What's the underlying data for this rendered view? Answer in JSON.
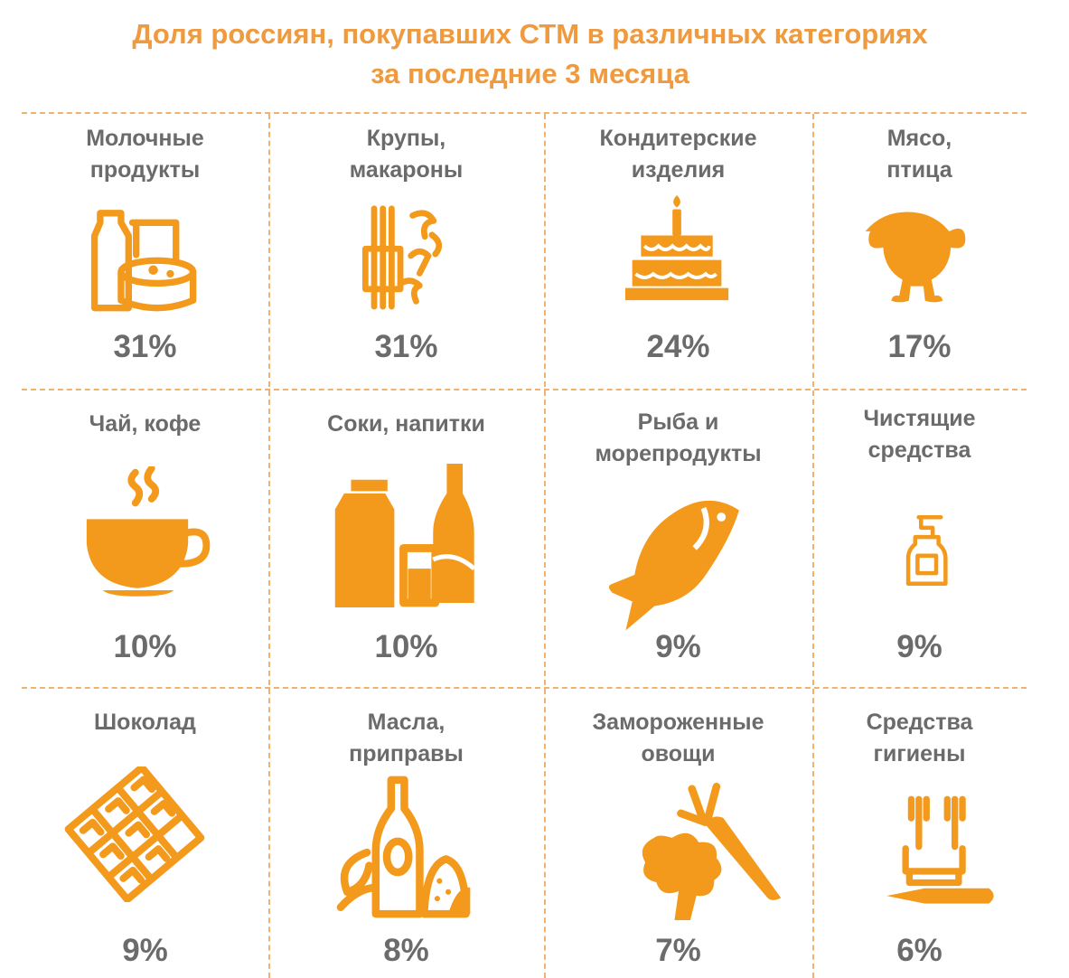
{
  "title_lines": [
    "Доля россиян, покупавших СТМ в различных категориях",
    "за последние 3 месяца"
  ],
  "accent_color": "#f39a1d",
  "label_color": "#6b6b6b",
  "chart_data": {
    "type": "table",
    "title": "Доля россиян, покупавших СТМ в различных категориях за последние 3 месяца",
    "unit": "%",
    "categories": [
      "Молочные продукты",
      "Крупы, макароны",
      "Кондитерские изделия",
      "Мясо, птица",
      "Чай, кофе",
      "Соки, напитки",
      "Рыба и морепродукты",
      "Чистящие средства",
      "Шоколад",
      "Масла, приправы",
      "Замороженные овощи",
      "Средства гигиены"
    ],
    "values": [
      31,
      31,
      24,
      17,
      10,
      10,
      9,
      9,
      9,
      8,
      7,
      6
    ]
  },
  "cells": [
    {
      "label_lines": [
        "Молочные",
        "продукты"
      ],
      "value": "31%",
      "icon": "dairy-icon"
    },
    {
      "label_lines": [
        "Крупы,",
        "макароны"
      ],
      "value": "31%",
      "icon": "pasta-icon"
    },
    {
      "label_lines": [
        "Кондитерские",
        "изделия"
      ],
      "value": "24%",
      "icon": "cake-icon"
    },
    {
      "label_lines": [
        "Мясо,",
        "птица"
      ],
      "value": "17%",
      "icon": "chicken-icon"
    },
    {
      "label_lines": [
        "Чай, кофе"
      ],
      "value": "10%",
      "icon": "cup-icon"
    },
    {
      "label_lines": [
        "Соки, напитки"
      ],
      "value": "10%",
      "icon": "drinks-icon"
    },
    {
      "label_lines": [
        "Рыба и",
        "морепродукты"
      ],
      "value": "9%",
      "icon": "fish-icon"
    },
    {
      "label_lines": [
        "Чистящие",
        "средства"
      ],
      "value": "9%",
      "icon": "cleaner-bottle-icon"
    },
    {
      "label_lines": [
        "Шоколад"
      ],
      "value": "9%",
      "icon": "chocolate-icon"
    },
    {
      "label_lines": [
        "Масла,",
        "приправы"
      ],
      "value": "8%",
      "icon": "oil-spices-icon"
    },
    {
      "label_lines": [
        "Замороженные",
        "овощи"
      ],
      "value": "7%",
      "icon": "vegetables-icon"
    },
    {
      "label_lines": [
        "Средства",
        "гигиены"
      ],
      "value": "6%",
      "icon": "toothbrush-icon"
    }
  ]
}
